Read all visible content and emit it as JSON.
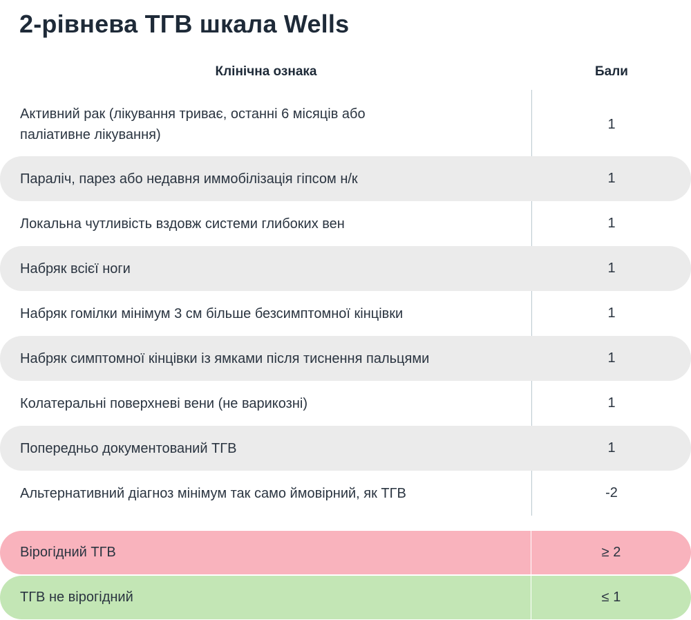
{
  "title": "2-рівнева ТГВ шкала Wells",
  "header": {
    "feature": "Клінічна ознака",
    "points": "Бали"
  },
  "rows": [
    {
      "text": "Активний рак (лікування триває, останні 6 місяців або паліативне лікування)",
      "points": "1"
    },
    {
      "text": "Параліч, парез або недавня иммобілізація гіпсом н/к",
      "points": "1"
    },
    {
      "text": "Локальна чутливість вздовж системи глибоких вен",
      "points": "1"
    },
    {
      "text": "Набряк всієї ноги",
      "points": "1"
    },
    {
      "text": "Набряк гомілки мінімум 3 см більше безсимптомної кінцівки",
      "points": "1"
    },
    {
      "text": "Набряк симптомної кінцівки із ямками після тиснення пальцями",
      "points": "1"
    },
    {
      "text": "Колатеральні поверхневі вени (не варикозні)",
      "points": "1"
    },
    {
      "text": "Попередньо документований ТГВ",
      "points": "1"
    },
    {
      "text": "Альтернативний діагноз мінімум так само ймовірний, як ТГВ",
      "points": "-2"
    }
  ],
  "results": {
    "likely": {
      "text": "Вірогідний ТГВ",
      "points": "≥ 2",
      "color": "#f9b3bd"
    },
    "unlikely": {
      "text": "ТГВ не вірогідний",
      "points": "≤ 1",
      "color": "#c3e6b5"
    }
  }
}
